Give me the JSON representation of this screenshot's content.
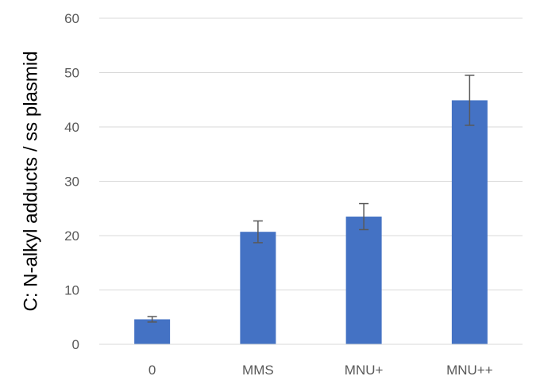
{
  "chart_data": {
    "type": "bar",
    "title": "",
    "xlabel": "",
    "ylabel": "C: N-alkyl adducts / ss plasmid",
    "categories": [
      "0",
      "MMS",
      "MNU+",
      "MNU++"
    ],
    "values": [
      4.6,
      20.7,
      23.5,
      44.9
    ],
    "error": [
      0.5,
      2.0,
      2.4,
      4.6
    ],
    "ylim": [
      0,
      60
    ],
    "yticks": [
      0,
      10,
      20,
      30,
      40,
      50,
      60
    ],
    "grid": true,
    "legend": "none",
    "bar_color": "#4472C4",
    "error_color": "#595959",
    "grid_color": "#D9D9D9"
  }
}
